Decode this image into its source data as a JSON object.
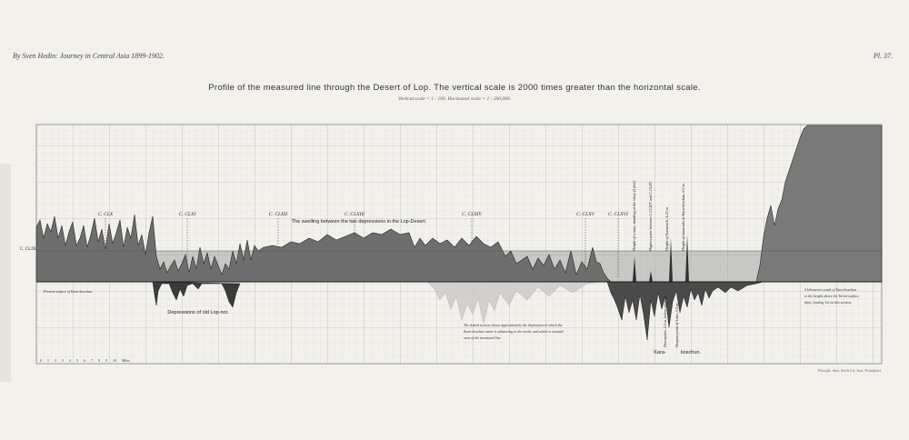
{
  "header": {
    "left": "By Sven Hedin: Journey in Central Asia 1899-1902.",
    "right": "Pl. 37."
  },
  "title": "Profile of the measured line through the Desert of Lop. The vertical scale is 2000 times greater than the horizontal scale.",
  "scale_note": "Vertical scale = 1 : 100.    Horizontal scale = 1 : 200,000.",
  "camps": [
    "C. CLX",
    "C. CLXI",
    "C. CLXII",
    "C. CLXIII",
    "C. CLXIV",
    "C. CLXV",
    "C. CLXVI"
  ],
  "datum_label": "C. CLIX",
  "annotations": {
    "swelling": "The swelling between the two depressions in the Lop-Desert.",
    "depression": "Depressions of old Lop-nor.",
    "surface": "Present surface of Kara-koschun.",
    "dotted_line_1": "The dotted section shows approximately the depression in which the",
    "dotted_line_2": "Kara-koschun water is advancing to the north, and which is situated",
    "dotted_line_3": "west of the measured line.",
    "karakoschun_1": "Kara-",
    "karakoschun_2": "koschun.",
    "right_note_1": "0 kilometers south of Kara-koschun",
    "right_note_2": "to the height above the Tarim-surface",
    "right_note_3": "(km), leading 1st on this section."
  },
  "vertical_labels": [
    "Height of a man, standing at the sleep (2 feet).",
    "Highest point between C.CLXIV and C.CLXV.",
    "Height of Eutemisch, 4.25 m.",
    "Height of tamarisks at Kara-koschun, 6.5 m.",
    "Downpoint, 2.5 m. below surface.",
    "Deepest point of Lake, 5.2 m."
  ],
  "axis_ticks": [
    "0",
    "1",
    "2",
    "3",
    "4",
    "5",
    "6",
    "7",
    "8",
    "9",
    "10",
    "Miles"
  ],
  "credit": "Pressfit. Amt. Stich Lit. Inst. Frankfurt.",
  "colors": {
    "ink": "#2b2b2b",
    "grid": "#b8b8b8",
    "band": "#9a9a9a",
    "paper": "#f4f3ef"
  }
}
